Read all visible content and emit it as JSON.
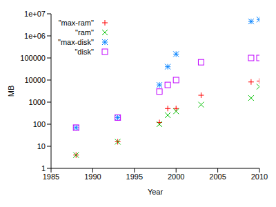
{
  "chart_data": {
    "type": "scatter",
    "x_label": "Year",
    "y_label": "MB",
    "log": "y",
    "grid": false,
    "legend": "upper left",
    "x": [
      1988,
      1993,
      1998,
      1999,
      2000,
      2003,
      2009,
      2010
    ],
    "xlim": [
      1985,
      2010
    ],
    "xticks": [
      1985,
      1990,
      1995,
      2000,
      2005,
      2010
    ],
    "ylim": [
      1,
      10000000
    ],
    "yticks": [
      1,
      10,
      100,
      1000,
      10000,
      100000,
      {
        "value": 1000000,
        "label": "1e+06"
      },
      {
        "value": 10000000,
        "label": "1e+07"
      }
    ],
    "series": [
      {
        "name": "\"max-ram\"",
        "color": "#ff0000",
        "marker": "plus",
        "values": [
          4,
          16,
          120,
          512,
          512,
          2048,
          8192,
          9000
        ]
      },
      {
        "name": "\"ram\"",
        "color": "#00c000",
        "marker": "x",
        "values": [
          4,
          16,
          100,
          256,
          384,
          768,
          1536,
          5000
        ]
      },
      {
        "name": "\"max-disk\"",
        "color": "#0080ff",
        "marker": "star",
        "values": [
          70,
          200,
          6000,
          40000,
          150000,
          null,
          4500000,
          5500000
        ]
      },
      {
        "name": "\"disk\"",
        "color": "#c000ff",
        "marker": "square",
        "values": [
          70,
          200,
          3000,
          6000,
          10000,
          64000,
          100000,
          100000
        ]
      }
    ]
  }
}
